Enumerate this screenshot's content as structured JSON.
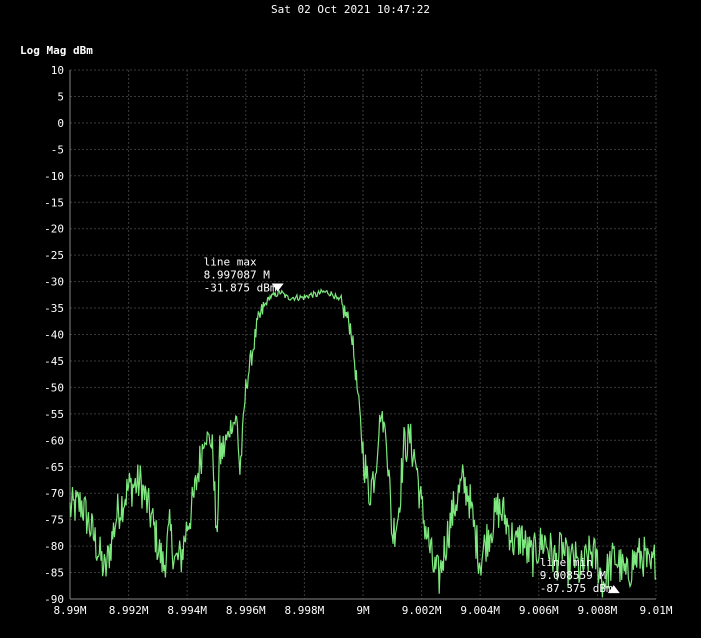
{
  "timestamp": "Sat 02 Oct 2021 10:47:22",
  "chart_data": {
    "type": "line",
    "ylabel": "Log Mag dBm",
    "xlabel": "",
    "xlim": [
      8.99,
      9.01
    ],
    "ylim": [
      -90,
      10
    ],
    "grid": true,
    "colors": {
      "background": "#000000",
      "grid": "#3a3a3a",
      "trace": "#7de87d",
      "text": "#ffffff"
    },
    "y_ticks": [
      "10",
      "5",
      "0",
      "-5",
      "-10",
      "-15",
      "-20",
      "-25",
      "-30",
      "-35",
      "-40",
      "-45",
      "-50",
      "-55",
      "-60",
      "-65",
      "-70",
      "-75",
      "-80",
      "-85",
      "-90"
    ],
    "x_ticks": [
      {
        "v": 8.99,
        "label": "8.99M"
      },
      {
        "v": 8.992,
        "label": "8.992M"
      },
      {
        "v": 8.994,
        "label": "8.994M"
      },
      {
        "v": 8.996,
        "label": "8.996M"
      },
      {
        "v": 8.998,
        "label": "8.998M"
      },
      {
        "v": 9.0,
        "label": "9M"
      },
      {
        "v": 9.002,
        "label": "9.002M"
      },
      {
        "v": 9.004,
        "label": "9.004M"
      },
      {
        "v": 9.006,
        "label": "9.006M"
      },
      {
        "v": 9.008,
        "label": "9.008M"
      },
      {
        "v": 9.01,
        "label": "9.01M"
      }
    ],
    "series": [
      {
        "x": [
          8.99,
          8.9904,
          8.9908,
          8.9912,
          8.9916,
          8.992,
          8.9924,
          8.9928,
          8.993,
          8.9932,
          8.9934,
          8.9936,
          8.9938,
          8.994,
          8.9942,
          8.9944,
          8.9946,
          8.9948,
          8.9949,
          8.995,
          8.9951,
          8.9953,
          8.9955,
          8.9957,
          8.9958,
          8.996,
          8.9962,
          8.9964,
          8.9966,
          8.9968,
          8.997,
          8.9972,
          8.9974,
          8.9976,
          8.9978,
          8.998,
          8.9982,
          8.9984,
          8.9986,
          8.9988,
          8.999,
          8.9992,
          8.9994,
          8.9996,
          8.9998,
          9.0,
          9.0002,
          9.0004,
          9.0006,
          9.0008,
          9.001,
          9.0012,
          9.0014,
          9.0016,
          9.0018,
          9.002,
          9.0022,
          9.0024,
          9.0026,
          9.0028,
          9.003,
          9.0032,
          9.0034,
          9.0036,
          9.0038,
          9.004,
          9.0042,
          9.0044,
          9.0046,
          9.0048,
          9.005,
          9.0052,
          9.0054,
          9.0056,
          9.0058,
          9.006,
          9.0062,
          9.0064,
          9.0066,
          9.0068,
          9.007,
          9.0072,
          9.0074,
          9.0076,
          9.0078,
          9.008,
          9.0082,
          9.0084,
          9.0086,
          9.0088,
          9.009,
          9.0092,
          9.0094,
          9.0096,
          9.0098,
          9.01
        ],
        "y": [
          -73,
          -72,
          -78,
          -85,
          -74,
          -69,
          -68,
          -75,
          -80,
          -84,
          -77,
          -83,
          -82,
          -76,
          -72,
          -65,
          -59,
          -60,
          -64,
          -80,
          -63,
          -61,
          -57,
          -56,
          -66,
          -50,
          -44,
          -38,
          -35,
          -33,
          -32.5,
          -32,
          -33,
          -33,
          -33,
          -33,
          -32.5,
          -32.5,
          -32,
          -32,
          -32.5,
          -34,
          -36,
          -39,
          -50,
          -62,
          -70,
          -66,
          -55,
          -59,
          -78,
          -74,
          -61,
          -60,
          -64,
          -73,
          -78,
          -84,
          -86,
          -80,
          -75,
          -71,
          -68,
          -70,
          -77,
          -83,
          -79,
          -76,
          -73,
          -74,
          -77,
          -80,
          -78,
          -81,
          -82,
          -80,
          -79,
          -81,
          -83,
          -80,
          -84,
          -82,
          -85,
          -83,
          -81,
          -83,
          -87,
          -84,
          -82,
          -84,
          -86,
          -83,
          -82,
          -82,
          -85,
          -82
        ]
      }
    ],
    "markers": [
      {
        "label": "line max",
        "freq": "8.997087 M",
        "value": "-31.875 dBm",
        "x": 8.997087,
        "y": -31.875,
        "direction": "down"
      },
      {
        "label": "line min",
        "freq": "9.008559 M",
        "value": "-87.375 dBm",
        "x": 9.008559,
        "y": -87.375,
        "direction": "up"
      }
    ]
  }
}
